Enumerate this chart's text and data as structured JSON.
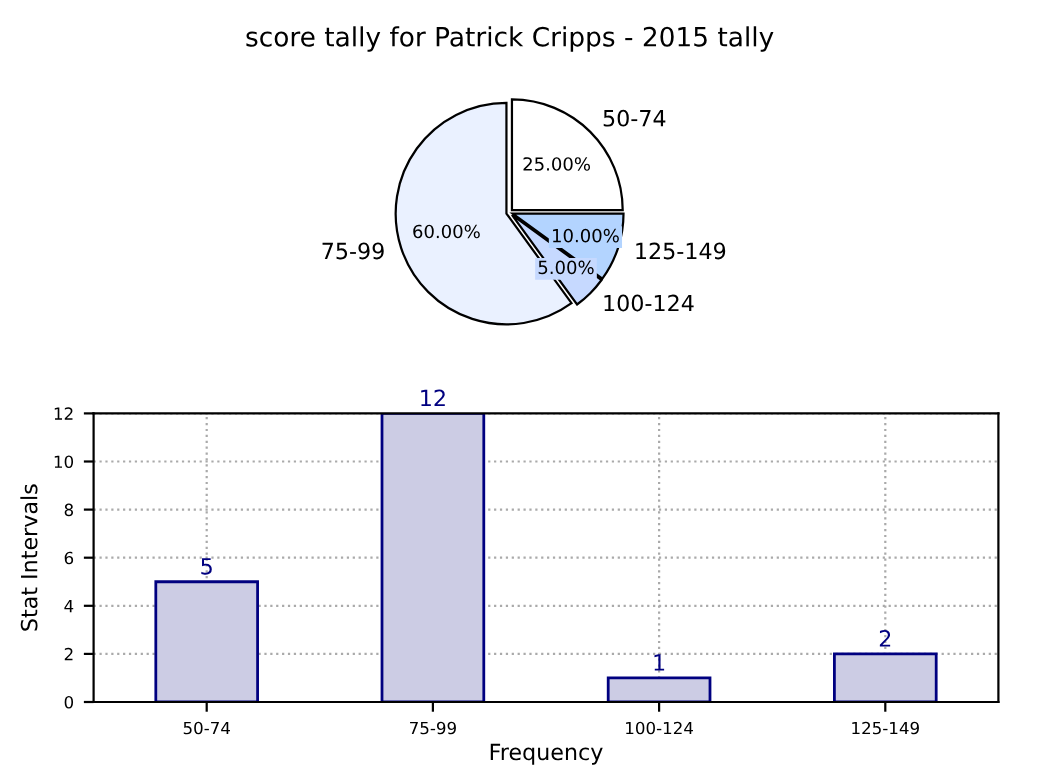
{
  "chart_data": [
    {
      "type": "pie",
      "title": "score tally for Patrick Cripps - 2015 tally",
      "categories": [
        "50-74",
        "125-149",
        "100-124",
        "75-99"
      ],
      "values": [
        25,
        10,
        5,
        60
      ],
      "value_labels": [
        "25.00%",
        "10.00%",
        "5.00%",
        "60.00%"
      ],
      "colors": [
        "#ffffff",
        "#b3d4ff",
        "#c6d9ff",
        "#eaf1ff"
      ]
    },
    {
      "type": "bar",
      "categories": [
        "50-74",
        "75-99",
        "100-124",
        "125-149"
      ],
      "values": [
        5,
        12,
        1,
        2
      ],
      "color": "#ccccE4",
      "xlabel": "Frequency",
      "ylabel": "Stat Intervals",
      "ylim": [
        0,
        12
      ],
      "yticks": [
        0,
        2,
        4,
        6,
        8,
        10,
        12
      ],
      "grid": true,
      "data_labels": true
    }
  ]
}
